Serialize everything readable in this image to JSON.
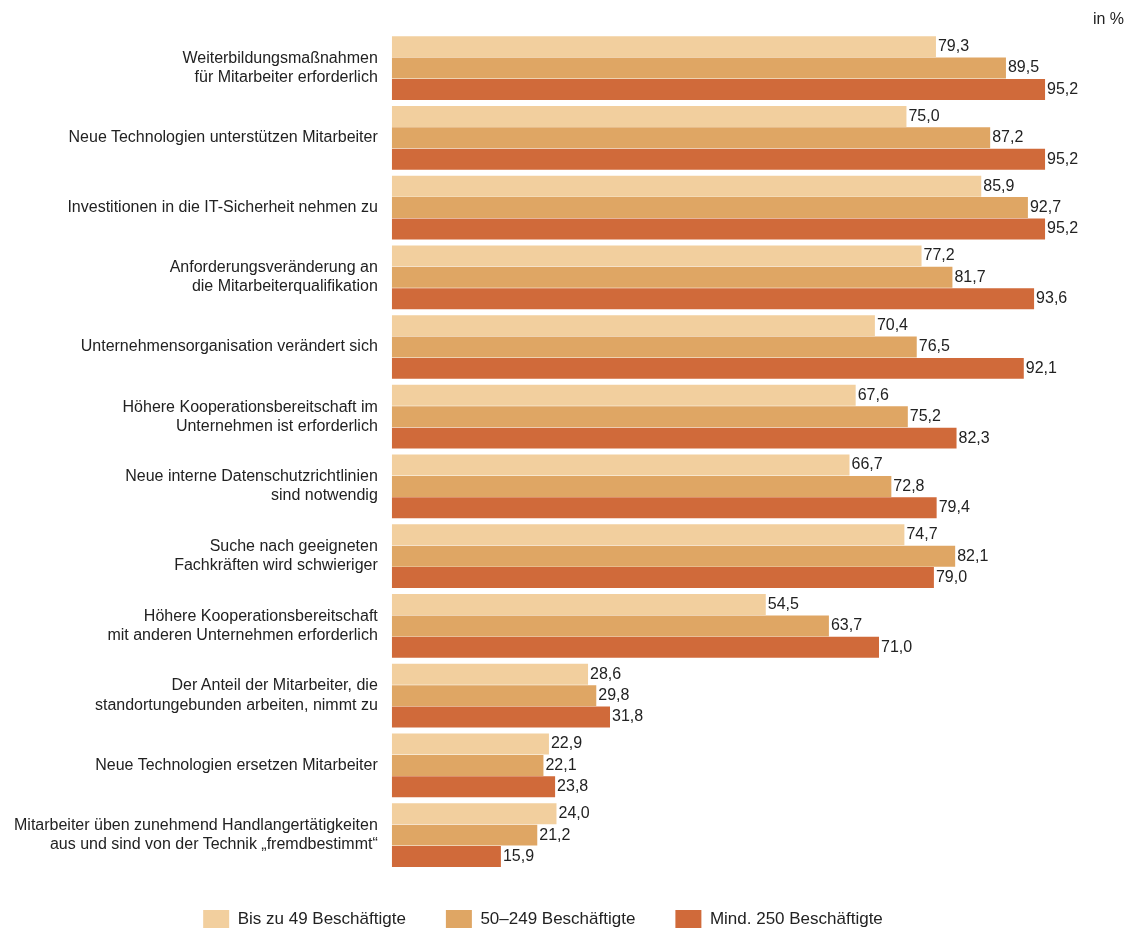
{
  "chart_data": {
    "type": "bar",
    "orientation": "horizontal",
    "legend": "bottom",
    "annotations": [
      "in %"
    ],
    "categories": [
      "Weiterbildungsmaßnahmen\nfür Mitarbeiter erforderlich",
      "Neue Technologien unterstützen Mitarbeiter",
      "Investitionen in die IT-Sicherheit nehmen zu",
      "Anforderungsveränderung an\ndie Mitarbeiterqualifikation",
      "Unternehmensorganisation verändert sich",
      "Höhere Kooperationsbereitschaft im\nUnternehmen ist erforderlich",
      "Neue interne Datenschutzrichtlinien\nsind notwendig",
      "Suche nach geeigneten\nFachkräften wird schwieriger",
      "Höhere Kooperationsbereitschaft\nmit anderen Unternehmen erforderlich",
      "Der Anteil der Mitarbeiter, die\nstandortungebunden arbeiten, nimmt zu",
      "Neue Technologien ersetzen Mitarbeiter",
      "Mitarbeiter üben zunehmend Handlangertätigkeiten\naus und sind von der Technik „fremdbestimmt“"
    ],
    "series": [
      {
        "name": "Bis zu 49 Beschäftigte",
        "color": "#f2cf9e",
        "values": [
          79.3,
          75.0,
          85.9,
          77.2,
          70.4,
          67.6,
          66.7,
          74.7,
          54.5,
          28.6,
          22.9,
          24.0
        ],
        "value_labels": [
          "79,3",
          "75,0",
          "85,9",
          "77,2",
          "70,4",
          "67,6",
          "66,7",
          "74,7",
          "54,5",
          "28,6",
          "22,9",
          "24,0"
        ]
      },
      {
        "name": "50–249 Beschäftigte",
        "color": "#dfa664",
        "values": [
          89.5,
          87.2,
          92.7,
          81.7,
          76.5,
          75.2,
          72.8,
          82.1,
          63.7,
          29.8,
          22.1,
          21.2
        ],
        "value_labels": [
          "89,5",
          "87,2",
          "92,7",
          "81,7",
          "76,5",
          "75,2",
          "72,8",
          "82,1",
          "63,7",
          "29,8",
          "22,1",
          "21,2"
        ]
      },
      {
        "name": "Mind. 250 Beschäftigte",
        "color": "#d06a3a",
        "values": [
          95.2,
          95.2,
          95.2,
          93.6,
          92.1,
          82.3,
          79.4,
          79.0,
          71.0,
          31.8,
          23.8,
          15.9
        ],
        "value_labels": [
          "95,2",
          "95,2",
          "95,2",
          "93,6",
          "92,1",
          "82,3",
          "79,4",
          "79,0",
          "71,0",
          "31,8",
          "23,8",
          "15,9"
        ]
      }
    ]
  }
}
